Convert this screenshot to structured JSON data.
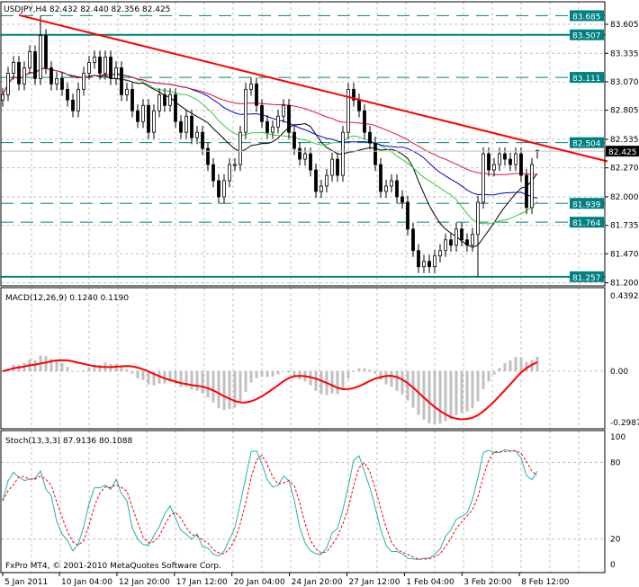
{
  "chart_data": {
    "type": "candlestick",
    "symbol_header": "USDJPY,H4",
    "last_bar": {
      "open": 82.432,
      "high": 82.44,
      "low": 82.356,
      "close": 82.425
    },
    "header_values": "82.432 82.440 82.356 82.425",
    "close": [
      82.95,
      83.15,
      83.25,
      83.05,
      83.2,
      83.35,
      83.1,
      83.5,
      83.2,
      83.05,
      83.1,
      83.0,
      82.9,
      82.8,
      83.0,
      83.15,
      83.25,
      83.3,
      83.15,
      83.3,
      83.1,
      83.2,
      82.95,
      83.0,
      82.8,
      82.7,
      82.85,
      82.6,
      82.8,
      82.95,
      82.85,
      82.95,
      82.7,
      82.6,
      82.75,
      82.55,
      82.6,
      82.45,
      82.3,
      82.15,
      82.0,
      82.15,
      82.3,
      82.3,
      82.6,
      83.0,
      83.05,
      82.85,
      82.7,
      82.6,
      82.65,
      82.75,
      82.85,
      82.6,
      82.45,
      82.35,
      82.4,
      82.25,
      82.05,
      82.1,
      82.2,
      82.35,
      82.2,
      82.6,
      83.0,
      82.9,
      82.8,
      82.6,
      82.5,
      82.3,
      82.05,
      82.1,
      82.15,
      82.0,
      81.95,
      81.7,
      81.5,
      81.35,
      81.4,
      81.35,
      81.45,
      81.5,
      81.6,
      81.55,
      81.7,
      81.6,
      81.55,
      81.65,
      81.95,
      82.4,
      82.25,
      82.3,
      82.4,
      82.35,
      82.3,
      82.4,
      82.2,
      81.9,
      82.3,
      82.425
    ],
    "notable_extremes": {
      "high": 83.685,
      "low": 81.257
    },
    "price_axis": {
      "range": [
        81.2,
        83.82
      ],
      "ticks": [
        "83.605",
        "83.335",
        "83.070",
        "82.805",
        "82.535",
        "82.270",
        "82.000",
        "81.735",
        "81.470",
        "81.200"
      ]
    },
    "time_axis": {
      "ticks": [
        "5 Jan 2011",
        "10 Jan 04:00",
        "12 Jan 20:00",
        "17 Jan 12:00",
        "20 Jan 04:00",
        "24 Jan 20:00",
        "27 Jan 12:00",
        "1 Feb 04:00",
        "3 Feb 20:00",
        "8 Feb 12:00"
      ]
    },
    "grid": true,
    "horizontal_levels": [
      {
        "price": 83.685,
        "label": "83.685",
        "style": "dashed"
      },
      {
        "price": 83.507,
        "label": "83.507",
        "style": "solid"
      },
      {
        "price": 83.111,
        "label": "83.111",
        "style": "dashed"
      },
      {
        "price": 82.504,
        "label": "82.504",
        "style": "dashed"
      },
      {
        "price": 81.939,
        "label": "81.939",
        "style": "dashed"
      },
      {
        "price": 81.764,
        "label": "81.764",
        "style": "dashed"
      },
      {
        "price": 81.257,
        "label": "81.257",
        "style": "solid"
      }
    ],
    "current_price": {
      "price": 82.425,
      "label": "82.425"
    },
    "trendline": {
      "from": {
        "bar": 3,
        "price": 83.69
      },
      "to": {
        "bar": 112,
        "price": 82.33
      },
      "color": "#ff0000"
    },
    "moving_averages": [
      {
        "color": "#000000"
      },
      {
        "color": "#32cd32"
      },
      {
        "color": "#0000cd"
      },
      {
        "color": "#dc143c"
      }
    ],
    "macd": {
      "label": "MACD(12,26,9) 0.1240 0.1190",
      "range": [
        -0.2987,
        0.4392
      ],
      "ticks": [
        "0.4392",
        "0.00",
        "-0.2987"
      ],
      "histogram_color": "#c0c0c0",
      "signal_color": "#ff0000"
    },
    "stochastic": {
      "label": "Stoch(13,3,3) 87.9136 80.1088",
      "range": [
        0,
        100
      ],
      "ticks": [
        "100",
        "80",
        "20",
        "0"
      ],
      "main_color": "#20b2aa",
      "signal_color": "#ff0000"
    },
    "level_label_color": "#008080"
  },
  "footer": {
    "copyright": "FxPro MT4, © 2001-2010 MetaQuotes Software Corp."
  }
}
